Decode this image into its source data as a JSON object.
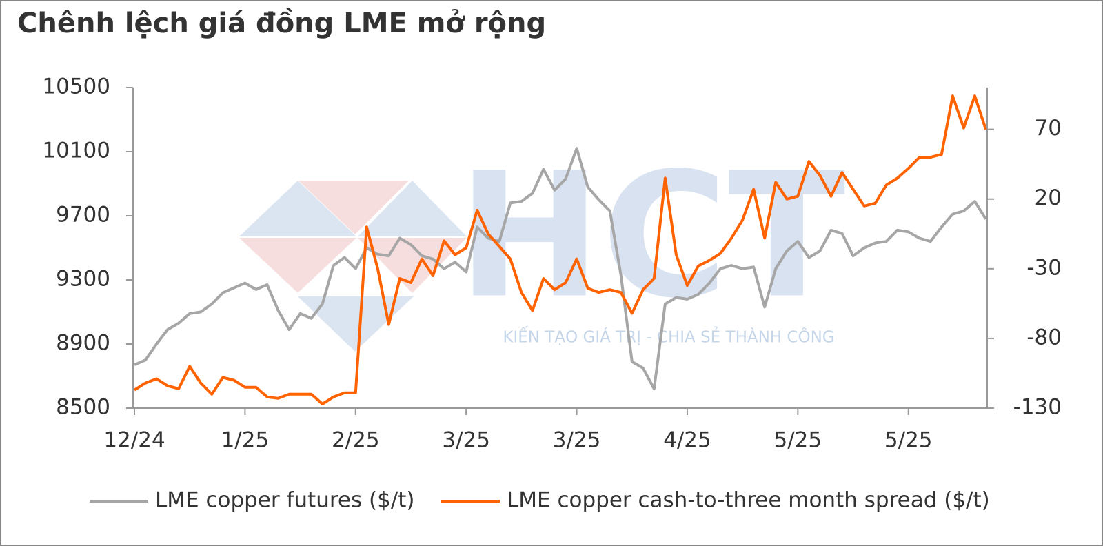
{
  "chart_data": {
    "type": "line",
    "title": "Chênh lệch giá đồng LME mở rộng",
    "watermark": {
      "logo": "HCT",
      "slogan": "KIẾN TẠO GIÁ TRỊ - CHIA SẺ THÀNH CÔNG"
    },
    "categories": [
      "12/24",
      null,
      null,
      null,
      null,
      null,
      null,
      null,
      null,
      null,
      "1/25",
      null,
      null,
      null,
      null,
      null,
      null,
      null,
      null,
      null,
      "2/25",
      null,
      null,
      null,
      null,
      null,
      null,
      null,
      null,
      null,
      "3/25",
      null,
      null,
      null,
      null,
      null,
      null,
      null,
      null,
      null,
      "3/25",
      null,
      null,
      null,
      null,
      null,
      null,
      null,
      null,
      null,
      "4/25",
      null,
      null,
      null,
      null,
      null,
      null,
      null,
      null,
      null,
      "5/25",
      null,
      null,
      null,
      null,
      null,
      null,
      null,
      null,
      null,
      "5/25",
      null,
      null,
      null,
      null,
      null,
      null,
      null
    ],
    "series": [
      {
        "name": "LME copper futures ($/t)",
        "color": "#a6a6a6",
        "values": [
          8770,
          8800,
          8900,
          8990,
          9030,
          9090,
          9100,
          9150,
          9220,
          9250,
          9280,
          9240,
          9270,
          9110,
          8990,
          9090,
          9060,
          9150,
          9390,
          9440,
          9370,
          9500,
          9460,
          9450,
          9560,
          9520,
          9450,
          9430,
          9370,
          9410,
          9350,
          9630,
          9560,
          9540,
          9780,
          9790,
          9840,
          9990,
          9860,
          9930,
          10120,
          9880,
          9800,
          9730,
          9330,
          8790,
          8750,
          8620,
          9150,
          9190,
          9180,
          9210,
          9280,
          9370,
          9390,
          9370,
          9380,
          9130,
          9370,
          9480,
          9540,
          9440,
          9480,
          9610,
          9590,
          9450,
          9500,
          9530,
          9540,
          9610,
          9600,
          9560,
          9540,
          9630,
          9710,
          9730,
          9790,
          9680
        ]
      },
      {
        "name": "LME copper cash-to-three month spread ($/t)",
        "color": "#ff6200",
        "axis": "y2",
        "values": [
          -117,
          -112,
          -109,
          -114,
          -116,
          -100,
          -112,
          -120,
          -108,
          -110,
          -115,
          -115,
          -122,
          -123,
          -120,
          -120,
          -120,
          -127,
          -122,
          -119,
          -119,
          0,
          -30,
          -70,
          -37,
          -40,
          -23,
          -35,
          -10,
          -20,
          -15,
          12,
          -5,
          -14,
          -23,
          -47,
          -60,
          -37,
          -45,
          -40,
          -23,
          -44,
          -47,
          -45,
          -47,
          -62,
          -45,
          -37,
          35,
          -20,
          -42,
          -28,
          -24,
          -19,
          -8,
          5,
          27,
          -8,
          32,
          20,
          22,
          47,
          37,
          22,
          39,
          27,
          15,
          17,
          30,
          35,
          42,
          50,
          50,
          52,
          94,
          71,
          94,
          70
        ]
      }
    ],
    "ylim": [
      8500,
      10500
    ],
    "yticks": [
      8500,
      8900,
      9300,
      9700,
      10100,
      10500
    ],
    "y2lim": [
      -130,
      100
    ],
    "y2ticks": [
      -130,
      -80,
      -30,
      20,
      70
    ],
    "grid": false
  }
}
